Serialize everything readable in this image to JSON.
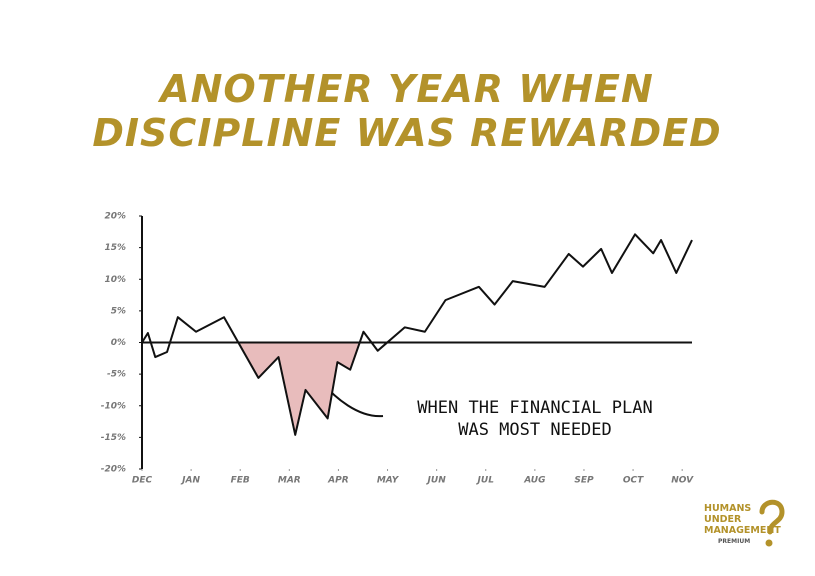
{
  "chart_data": {
    "type": "line",
    "title": [
      "ANOTHER YEAR WHEN",
      "DISCIPLINE WAS REWARDED"
    ],
    "x": [
      0,
      0.12,
      0.27,
      0.51,
      0.73,
      1.1,
      1.67,
      2.37,
      2.78,
      3.12,
      3.33,
      3.78,
      3.98,
      4.24,
      4.51,
      4.8,
      5.35,
      5.76,
      6.18,
      6.86,
      7.18,
      7.55,
      8.2,
      8.69,
      8.98,
      9.35,
      9.57,
      10.04,
      10.41,
      10.57,
      10.88,
      11.2
    ],
    "values": [
      0,
      1.5,
      -2.3,
      -1.5,
      4,
      1.7,
      4,
      -5.6,
      -2.3,
      -14.6,
      -7.5,
      -12,
      -3.1,
      -4.3,
      1.7,
      -1.3,
      2.4,
      1.7,
      6.7,
      8.8,
      6,
      9.7,
      8.8,
      14,
      12,
      14.8,
      11,
      17.1,
      14.1,
      16.2,
      11,
      16.2
    ],
    "color": "#111111",
    "highlight_color": "#e8bcbc",
    "xlim": [
      0,
      11.2
    ],
    "xticks": [
      {
        "value": 0,
        "label": "DEC"
      },
      {
        "value": 1,
        "label": "JAN"
      },
      {
        "value": 2,
        "label": "FEB"
      },
      {
        "value": 3,
        "label": "MAR"
      },
      {
        "value": 4,
        "label": "APR"
      },
      {
        "value": 5,
        "label": "MAY"
      },
      {
        "value": 6,
        "label": "JUN"
      },
      {
        "value": 7,
        "label": "JUL"
      },
      {
        "value": 8,
        "label": "AUG"
      },
      {
        "value": 9,
        "label": "SEP"
      },
      {
        "value": 10,
        "label": "OCT"
      },
      {
        "value": 11,
        "label": "NOV"
      }
    ],
    "ylim": [
      -20,
      20
    ],
    "yticks": [
      {
        "value": 20,
        "label": "20%"
      },
      {
        "value": 15,
        "label": "15%"
      },
      {
        "value": 10,
        "label": "10%"
      },
      {
        "value": 5,
        "label": "5%"
      },
      {
        "value": 0,
        "label": "0%"
      },
      {
        "value": -5,
        "label": "-5%"
      },
      {
        "value": -10,
        "label": "-10%"
      },
      {
        "value": -15,
        "label": "-15%"
      },
      {
        "value": -20,
        "label": "-20%"
      }
    ],
    "grid": false,
    "annotation": [
      "WHEN THE FINANCIAL PLAN",
      "WAS MOST NEEDED"
    ]
  },
  "logo": [
    "HUMANS",
    "UNDER",
    "MANAGEMENT",
    "PREMIUM"
  ]
}
